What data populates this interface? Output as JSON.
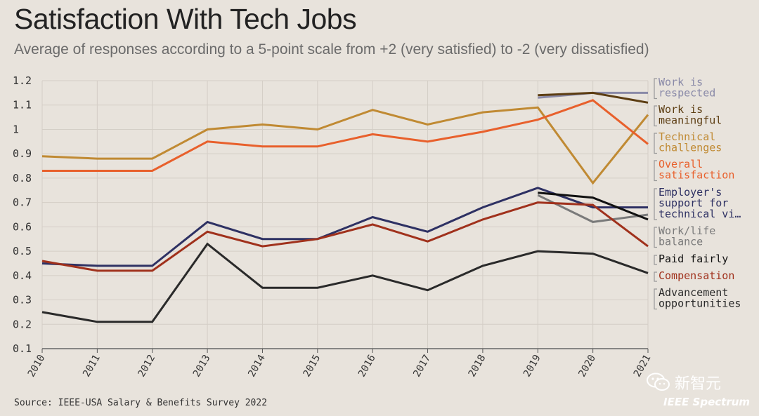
{
  "chart_data": {
    "type": "line",
    "title": "Satisfaction With Tech Jobs",
    "subtitle": "Average of responses according to a 5-point scale from +2 (very satisfied) to -2 (very dissatisfied)",
    "source": "Source: IEEE-USA Salary & Benefits Survey 2022",
    "x": [
      "2010",
      "2011",
      "2012",
      "2013",
      "2014",
      "2015",
      "2016",
      "2017",
      "2018",
      "2019",
      "2020",
      "2021"
    ],
    "ylim": [
      0.1,
      1.2
    ],
    "yticks": [
      "0.1",
      "0.2",
      "0.3",
      "0.4",
      "0.5",
      "0.6",
      "0.7",
      "0.8",
      "0.9",
      "1",
      "1.1",
      "1.2"
    ],
    "grid": true,
    "legend": "right",
    "series": [
      {
        "name": "Work is respected",
        "color": "#8a8aa8",
        "label_lines": [
          "Work is",
          "respected"
        ],
        "values": [
          null,
          null,
          null,
          null,
          null,
          null,
          null,
          null,
          null,
          1.13,
          1.15,
          1.15
        ]
      },
      {
        "name": "Work is meaningful",
        "color": "#5c3d12",
        "label_lines": [
          "Work is",
          "meaningful"
        ],
        "values": [
          null,
          null,
          null,
          null,
          null,
          null,
          null,
          null,
          null,
          1.14,
          1.15,
          1.11
        ]
      },
      {
        "name": "Technical challenges",
        "color": "#c08a33",
        "label_lines": [
          "Technical",
          "challenges"
        ],
        "values": [
          0.89,
          0.88,
          0.88,
          1.0,
          1.02,
          1.0,
          1.08,
          1.02,
          1.07,
          1.09,
          0.78,
          1.06
        ]
      },
      {
        "name": "Overall satisfaction",
        "color": "#e8602c",
        "label_lines": [
          "Overall",
          "satisfaction"
        ],
        "values": [
          0.83,
          0.83,
          0.83,
          0.95,
          0.93,
          0.93,
          0.98,
          0.95,
          0.99,
          1.04,
          1.12,
          0.94
        ]
      },
      {
        "name": "Employer's support for technical vi...",
        "color": "#2e3163",
        "label_lines": [
          "Employer's",
          "support for",
          "technical vi…"
        ],
        "values": [
          0.45,
          0.44,
          0.44,
          0.62,
          0.55,
          0.55,
          0.64,
          0.58,
          0.68,
          0.76,
          0.68,
          0.68
        ]
      },
      {
        "name": "Work/life balance",
        "color": "#7a7a7a",
        "label_lines": [
          "Work/life",
          "balance"
        ],
        "values": [
          null,
          null,
          null,
          null,
          null,
          null,
          null,
          null,
          null,
          0.73,
          0.62,
          0.65
        ]
      },
      {
        "name": "Paid fairly",
        "color": "#111111",
        "label_lines": [
          "Paid fairly"
        ],
        "values": [
          null,
          null,
          null,
          null,
          null,
          null,
          null,
          null,
          null,
          0.74,
          0.72,
          0.63
        ]
      },
      {
        "name": "Compensation",
        "color": "#a0311c",
        "label_lines": [
          "Compensation"
        ],
        "values": [
          0.46,
          0.42,
          0.42,
          0.58,
          0.52,
          0.55,
          0.61,
          0.54,
          0.63,
          0.7,
          0.69,
          0.52
        ]
      },
      {
        "name": "Advancement opportunities",
        "color": "#2a2a2a",
        "label_lines": [
          "Advancement",
          "opportunities"
        ],
        "values": [
          0.25,
          0.21,
          0.21,
          0.53,
          0.35,
          0.35,
          0.4,
          0.34,
          0.44,
          0.5,
          0.49,
          0.41
        ]
      }
    ]
  },
  "watermark": {
    "text": "新智元",
    "icon": "wechat-icon"
  },
  "brand": "IEEE Spectrum"
}
